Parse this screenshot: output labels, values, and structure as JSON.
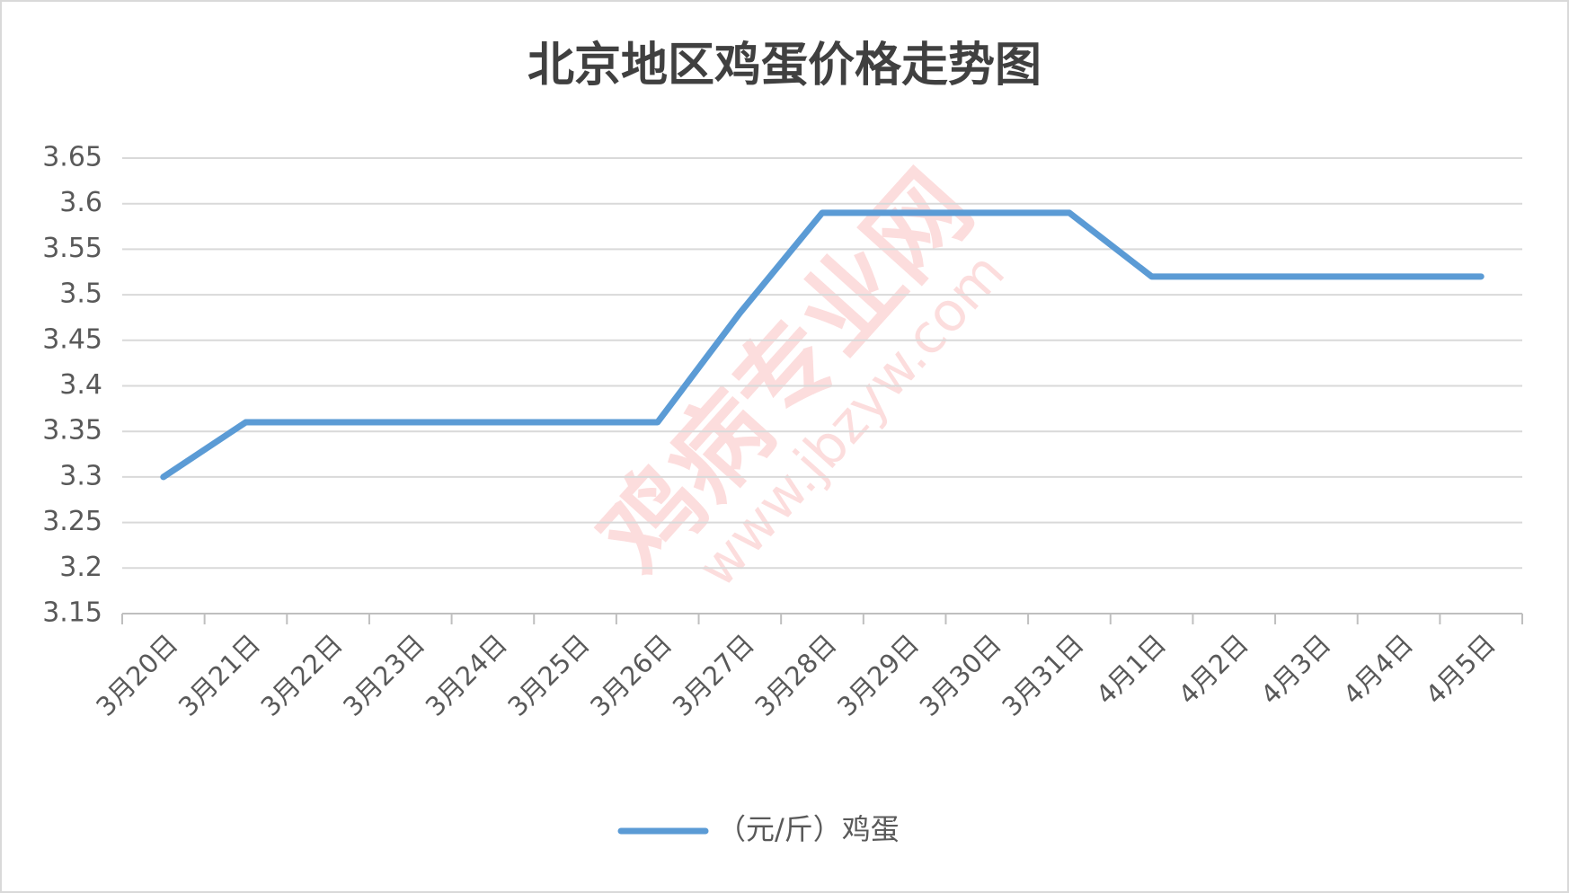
{
  "chart_data": {
    "type": "line",
    "title": "北京地区鸡蛋价格走势图",
    "categories": [
      "3月20日",
      "3月21日",
      "3月22日",
      "3月23日",
      "3月24日",
      "3月25日",
      "3月26日",
      "3月27日",
      "3月28日",
      "3月29日",
      "3月30日",
      "3月31日",
      "4月1日",
      "4月2日",
      "4月3日",
      "4月4日",
      "4月5日"
    ],
    "series": [
      {
        "name": "（元/斤）鸡蛋",
        "color": "#5b9bd5",
        "values": [
          3.3,
          3.36,
          3.36,
          3.36,
          3.36,
          3.36,
          3.36,
          3.48,
          3.59,
          3.59,
          3.59,
          3.59,
          3.52,
          3.52,
          3.52,
          3.52,
          3.52
        ]
      }
    ],
    "ylim": [
      3.15,
      3.65
    ],
    "yticks": [
      3.15,
      3.2,
      3.25,
      3.3,
      3.35,
      3.4,
      3.45,
      3.5,
      3.55,
      3.6,
      3.65
    ],
    "grid": true,
    "legend": "bottom",
    "watermark": [
      "鸡病专业网",
      "www.jbzyw.com"
    ]
  }
}
